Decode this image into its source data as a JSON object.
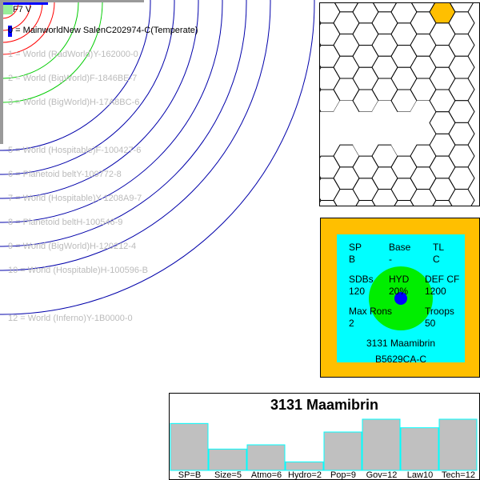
{
  "star": {
    "label": "F7 V"
  },
  "orbits": [
    {
      "index": 0,
      "text": "0 = MainworldNew SalenC202974-C(Temperate)",
      "main": true
    },
    {
      "index": 1,
      "text": "1 = World  (RadWorld)Y-162000-0"
    },
    {
      "index": 2,
      "text": "2 = World  (BigWorld)F-1846BE-7"
    },
    {
      "index": 3,
      "text": "3 = World  (BigWorld)H-17A8BC-6"
    },
    {
      "index": 5,
      "text": "5 = World  (Hospitable)F-100427-6"
    },
    {
      "index": 6,
      "text": "6 = Planetoid beltY-100772-8"
    },
    {
      "index": 7,
      "text": "7 = World  (Hospitable)Y-1208A9-7"
    },
    {
      "index": 8,
      "text": "8 = Planetoid beltH-100546-9"
    },
    {
      "index": 9,
      "text": "9 = World  (BigWorld)H-120212-4"
    },
    {
      "index": 10,
      "text": "10 = World  (Hospitable)H-100596-B"
    },
    {
      "index": 12,
      "text": "12 = World  (Inferno)Y-1B0000-0"
    }
  ],
  "colors": {
    "orbit_red": "#ff0000",
    "orbit_green": "#00cc00",
    "orbit_blue": "#0000aa",
    "hex_highlight": "#ffbf00",
    "panel_outer": "#ffbf00",
    "panel_inner": "#00ffff",
    "hyd_circle": "#00ee00",
    "world_dot": "#0000ff",
    "bar_fill": "#c0c0c0",
    "bar_edge": "#00ffff"
  },
  "info": {
    "sp_label": "SP",
    "sp_value": "B",
    "base_label": "Base",
    "base_value": "-",
    "tl_label": "TL",
    "tl_value": "C",
    "sdbs_label": "SDBs",
    "sdbs_value": "120",
    "hyd_label": "HYD",
    "hyd_value": "20%",
    "def_label": "DEF CF",
    "def_value": "1200",
    "ron_label": "Max Rons",
    "ron_value": "2",
    "troops_label": "Troops",
    "troops_value": "50",
    "name": "3131 Maamibrin",
    "uwp": "B5629CA-C"
  },
  "chart_data": {
    "type": "bar",
    "title": "3131 Maamibrin",
    "categories": [
      "SP=B",
      "Size=5",
      "Atmo=6",
      "Hydro=2",
      "Pop=9",
      "Gov=12",
      "Law10",
      "Tech=12"
    ],
    "values": [
      11,
      5,
      6,
      2,
      9,
      12,
      10,
      12
    ],
    "ylim": [
      0,
      12
    ]
  }
}
